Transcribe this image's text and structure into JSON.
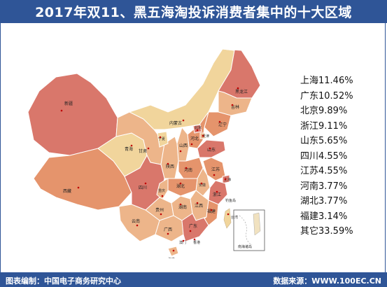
{
  "header": {
    "title": "2017年双11、黑五海淘投诉消费者集中的十大区域"
  },
  "footer": {
    "left_text": "图表编制：中国电子商务研究中心",
    "right_text": "数据来源：WWW.100EC.CN"
  },
  "ranking": [
    {
      "text": "上海11.46%",
      "region": "上海",
      "share": 11.46
    },
    {
      "text": "广东10.52%",
      "region": "广东",
      "share": 10.52
    },
    {
      "text": "北京9.89%",
      "region": "北京",
      "share": 9.89
    },
    {
      "text": "浙江9.11%",
      "region": "浙江",
      "share": 9.11
    },
    {
      "text": "山东5.65%",
      "region": "山东",
      "share": 5.65
    },
    {
      "text": "四川4.55%",
      "region": "四川",
      "share": 4.55
    },
    {
      "text": "江苏4.55%",
      "region": "江苏",
      "share": 4.55
    },
    {
      "text": "河南3.77%",
      "region": "河南",
      "share": 3.77
    },
    {
      "text": "湖北3.77%",
      "region": "湖北",
      "share": 3.77
    },
    {
      "text": "福建3.14%",
      "region": "福建",
      "share": 3.14
    },
    {
      "text": "其它33.59%",
      "region": "其它",
      "share": 33.59
    }
  ],
  "map_labels": {
    "xinjiang": "新疆",
    "xizang": "西藏",
    "qinghai": "青海",
    "gansu": "甘肃",
    "neimenggu": "内蒙古",
    "heilongjiang": "黑龙江",
    "jilin": "吉林",
    "liaoning": "辽宁",
    "beijing": "北京",
    "tianjin": "天津",
    "hebei": "河北",
    "shanxi": "山西",
    "shaanxi": "陕西",
    "ningxia": "宁夏",
    "shandong": "山东",
    "henan": "河南",
    "jiangsu": "江苏",
    "anhui": "安徽",
    "shanghai": "上海",
    "zhejiang": "浙江",
    "hubei": "湖北",
    "sichuan": "四川",
    "chongqing": "重庆",
    "hunan": "湖南",
    "jiangxi": "江西",
    "fujian": "福建",
    "guizhou": "贵州",
    "yunnan": "云南",
    "guangxi": "广西",
    "guangdong": "广东",
    "hainan": "海南",
    "taiwan": "台湾",
    "hongkong": "香港",
    "macau": "澳门",
    "diaoyudao": "钓鱼岛",
    "nanhai": "南海诸岛"
  },
  "colors": {
    "header_bg": "#2f5597",
    "level_top": "#d9776b",
    "level_high": "#e5946c",
    "level_mid": "#edb58a",
    "level_low": "#f1d59c",
    "city_dot": "#c00000"
  }
}
